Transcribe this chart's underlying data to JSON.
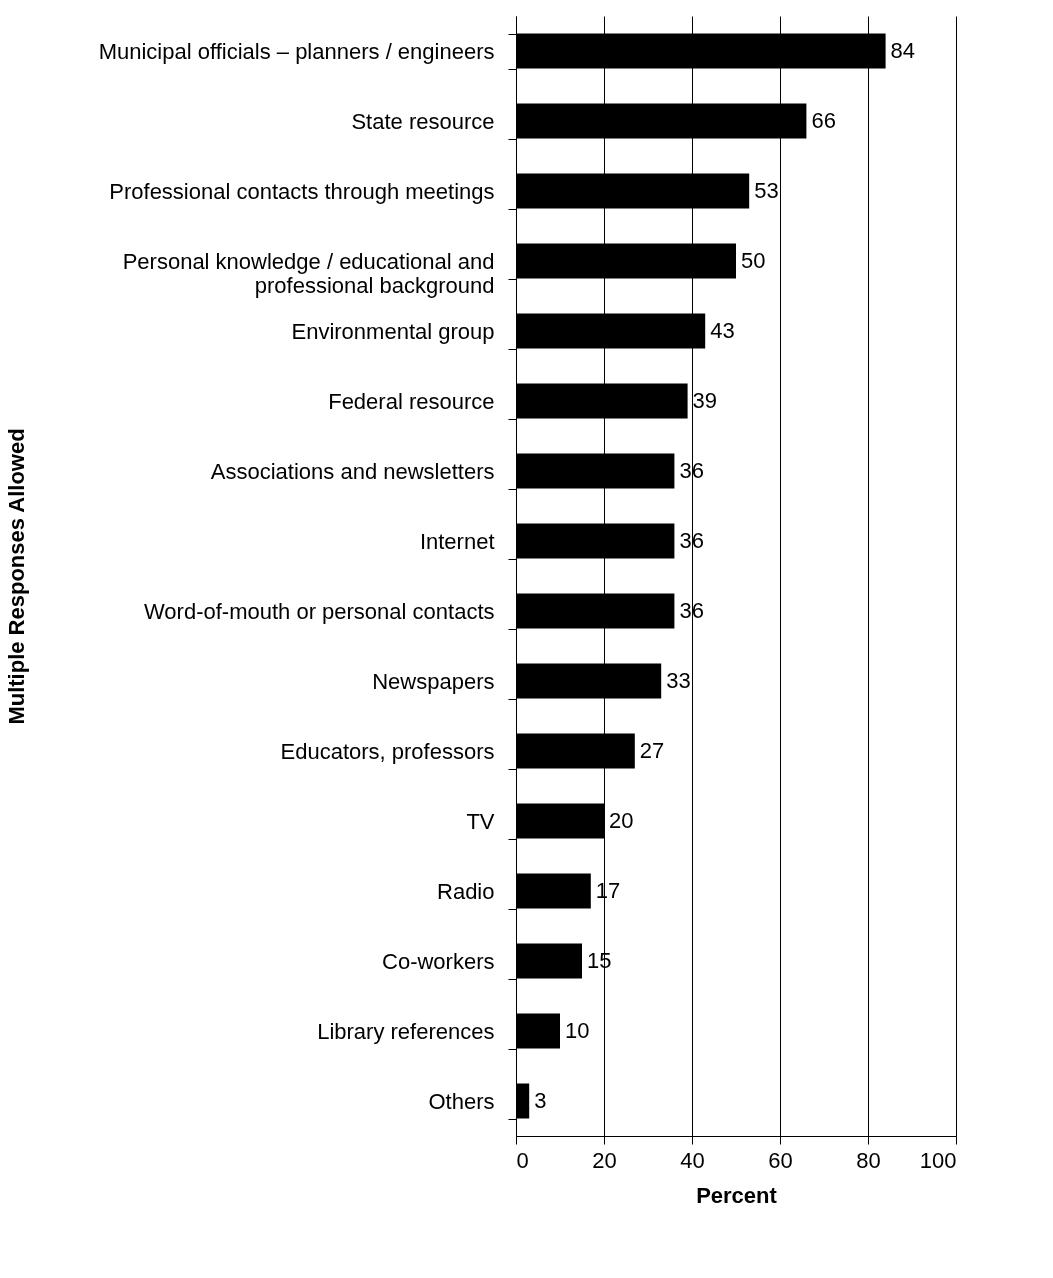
{
  "chart_data": {
    "type": "bar",
    "orientation": "horizontal",
    "xlabel": "Percent",
    "ylabel": "Multiple Responses Allowed",
    "categories": [
      "Municipal officials – planners / engineers",
      "State resource",
      "Professional contacts through meetings",
      "Personal knowledge / educational and professional background",
      "Environmental group",
      "Federal resource",
      "Associations and newsletters",
      "Internet",
      "Word-of-mouth or personal contacts",
      "Newspapers",
      "Educators, professors",
      "TV",
      "Radio",
      "Co-workers",
      "Library references",
      "Others"
    ],
    "values": [
      84,
      66,
      53,
      50,
      43,
      39,
      36,
      36,
      36,
      33,
      27,
      20,
      17,
      15,
      10,
      3
    ],
    "color": "#000000",
    "xlim": [
      0,
      100
    ],
    "xticks": [
      0,
      20,
      40,
      60,
      80,
      100
    ],
    "grid": "x",
    "data_labels": true
  }
}
